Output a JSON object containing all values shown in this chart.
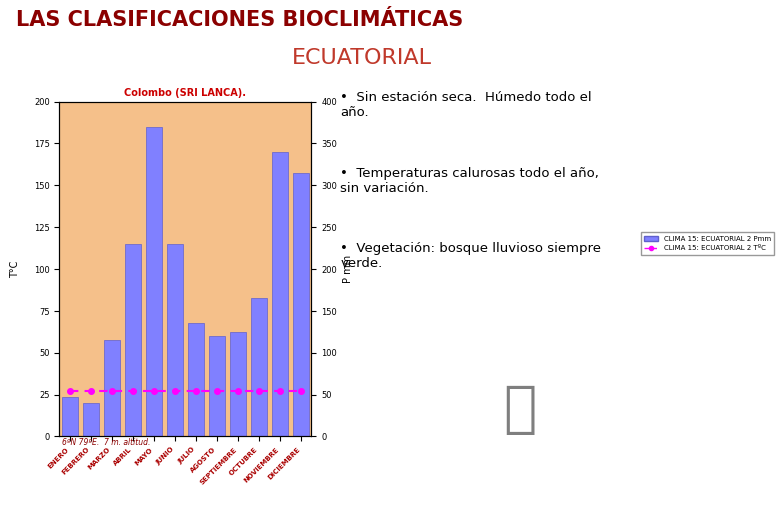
{
  "title_main": "LAS CLASIFICACIONES BIOCLIMÁTICAS",
  "title_main_color": "#8B0000",
  "title_sub": "ECUATORIAL",
  "title_sub_color": "#C0392B",
  "chart_title": "Colombo (SRI LANCA).",
  "chart_title_color": "#CC0000",
  "chart_subtitle": "6ºN 79ºE.  7 m. altitud.",
  "background_color": "#FFFFFF",
  "chart_bg_color": "#F5C08A",
  "months": [
    "ENERO",
    "FEBRERO",
    "MARZO",
    "ABRIL",
    "MAYO",
    "JUNIO",
    "JULIO",
    "AGOSTO",
    "SEPTIEMBRE",
    "OCTUBRE",
    "NOVIEMBRE",
    "DICIEMBRE"
  ],
  "precip_mm": [
    47,
    40,
    115,
    230,
    370,
    230,
    135,
    120,
    125,
    165,
    340,
    315
  ],
  "temp_c": [
    27,
    27,
    27,
    27,
    27,
    27,
    27,
    27,
    27,
    27,
    27,
    27
  ],
  "bar_color": "#8080FF",
  "bar_edgecolor": "#6060CC",
  "temp_line_color": "#FF00FF",
  "left_ylabel": "T°C",
  "right_ylabel": "P mm",
  "left_ylim": [
    0,
    200
  ],
  "right_ylim": [
    0,
    400
  ],
  "legend_bar": "CLIMA 15: ECUATORIAL 2 Pmm",
  "legend_line": "CLIMA 15: ECUATORIAL 2 TºC",
  "bullet_points": [
    "Sin estación seca.  Húmedo todo el\naño.",
    "Temperaturas calurosas todo el año,\nsin variación.",
    "Vegetación: bosque lluvioso siempre\nverde."
  ]
}
